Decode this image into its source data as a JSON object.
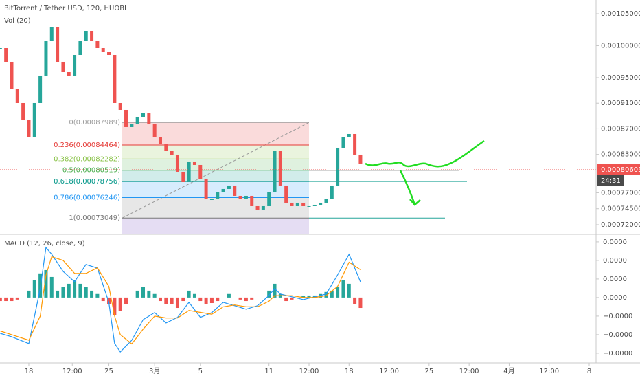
{
  "chart_data": [
    {
      "type": "candlestick",
      "title": "BitTorrent / Tether USD, 120, HUOBI",
      "subtitle": "Vol (20)",
      "x": [
        -2.5,
        -2,
        -1.5,
        -1,
        -0.5,
        0,
        0.5,
        1,
        1.5,
        2,
        2.5,
        3,
        3.5,
        4,
        4.5,
        5,
        5.5,
        6,
        6.5,
        7,
        7.5,
        8,
        8.5,
        9,
        9.5,
        10,
        10.5,
        11,
        11.5,
        12,
        12.5,
        13,
        13.5,
        14,
        14.5,
        15,
        15.5,
        16,
        16.5,
        17,
        17.5,
        18,
        18.5,
        19,
        19.5,
        20,
        20.5,
        21,
        21.5,
        22,
        22.5,
        23,
        23.5,
        24,
        24.5,
        25,
        25.5,
        26,
        26.5,
        27,
        27.5,
        28,
        28.5,
        29
      ],
      "close": [
        0.00099625,
        0.00097476,
        0.00093176,
        0.00091026,
        0.00088339,
        0.00085651,
        0.00091026,
        0.00095326,
        0.001007,
        0.0010285,
        0.00097476,
        0.00095863,
        0.00095326,
        0.0009855,
        0.001007,
        0.00102313,
        0.001007,
        0.00099625,
        0.00099088,
        0.0009855,
        0.00091026,
        0.00089951,
        0.00087264,
        0.00087801,
        0.00088876,
        0.00089414,
        0.00087801,
        0.00085651,
        0.00084577,
        0.00083502,
        0.00082964,
        0.00080277,
        0.00078664,
        0.00081889,
        0.00081352,
        0.00079202,
        0.00075977,
        0.00075977,
        0.00077052,
        0.0007759,
        0.00078127,
        0.00076515,
        0.00075977,
        0.00076515,
        0.00074902,
        0.00074365,
        0.00074902,
        0.00077052,
        0.00083502,
        0.00078127,
        0.0007544,
        0.00074902,
        0.0007544,
        0.00074902,
        0.00074902,
        0.00075117,
        0.0007544,
        0.00075977,
        0.00078127,
        0.00084039,
        0.00085651,
        0.00086189,
        0.00082964,
        0.00081567
      ],
      "up_color": "#26a69a",
      "down_color": "#ef5350",
      "xlim": [
        -2.52,
        49.6
      ],
      "xticks": [
        {
          "value": 0,
          "label": "18"
        },
        {
          "value": 3.8,
          "label": "12:00"
        },
        {
          "value": 7,
          "label": "25"
        },
        {
          "value": 11,
          "label": "3月"
        },
        {
          "value": 15,
          "label": "5"
        },
        {
          "value": 21,
          "label": "11"
        },
        {
          "value": 24.5,
          "label": "12:00"
        },
        {
          "value": 28,
          "label": "18"
        },
        {
          "value": 31.5,
          "label": "12:00"
        },
        {
          "value": 35,
          "label": "25"
        },
        {
          "value": 38.5,
          "label": "12:00"
        },
        {
          "value": 42,
          "label": "4月"
        },
        {
          "value": 45.5,
          "label": "12:00"
        },
        {
          "value": 49,
          "label": "8"
        }
      ],
      "ylim": [
        0.000706,
        0.0010715
      ],
      "yticks": [
        {
          "value": 0.00105,
          "label": "0.00105000"
        },
        {
          "value": 0.001,
          "label": "0.00100000"
        },
        {
          "value": 0.00095,
          "label": "0.00095000"
        },
        {
          "value": 0.00091,
          "label": "0.00091000"
        },
        {
          "value": 0.00087,
          "label": "0.00087000"
        },
        {
          "value": 0.00083,
          "label": "0.00083000"
        },
        {
          "value": 0.00077,
          "label": "0.00077000"
        },
        {
          "value": 0.000745,
          "label": "0.00074500"
        },
        {
          "value": 0.00072,
          "label": "0.00072000"
        }
      ],
      "last_price": {
        "value": 0.00080603,
        "label": "0.00080603"
      },
      "countdown": "24:31",
      "fib_levels": [
        {
          "label": "0(0.00087989)",
          "value": 0.00087989,
          "color": "#9e9e9e"
        },
        {
          "label": "0.236(0.00084464)",
          "value": 0.00084464,
          "color": "#e53935"
        },
        {
          "label": "0.382(0.00082282)",
          "value": 0.00082282,
          "color": "#8bc34a"
        },
        {
          "label": "0.5(0.00080519)",
          "value": 0.00080519,
          "color": "#4caf50"
        },
        {
          "label": "0.618(0.00078756)",
          "value": 0.00078756,
          "color": "#009688"
        },
        {
          "label": "0.786(0.00076246)",
          "value": 0.00076246,
          "color": "#2196f3"
        },
        {
          "label": "1(0.00073049)",
          "value": 0.00073049,
          "color": "#787878"
        }
      ]
    },
    {
      "type": "macd",
      "title": "MACD (12, 26, close, 9)",
      "histogram": [
        -1.9e-06,
        -1.9e-06,
        -1.9e-06,
        -1.1e-06,
        0,
        3.7e-06,
        9.3e-06,
        1.3e-05,
        1.48e-05,
        1.11e-05,
        3.7e-06,
        5.6e-06,
        7.4e-06,
        9.3e-06,
        7.4e-06,
        5.6e-06,
        3.7e-06,
        1.9e-06,
        -1.9e-06,
        -3.7e-06,
        -9.3e-06,
        -7.4e-06,
        -3.7e-06,
        0,
        3.7e-06,
        5.6e-06,
        3.7e-06,
        1.9e-06,
        -1.9e-06,
        -3.7e-06,
        -3.7e-06,
        -5.6e-06,
        -1.9e-06,
        3.7e-06,
        1.9e-06,
        -1.9e-06,
        -3.7e-06,
        -3e-06,
        -1.9e-06,
        0,
        1.9e-06,
        0,
        -1.1e-06,
        -1.9e-06,
        -1.1e-06,
        0,
        0,
        3.7e-06,
        7.4e-06,
        1.9e-06,
        -1.9e-06,
        -1.1e-06,
        0,
        7e-07,
        1.1e-06,
        1.1e-06,
        1.9e-06,
        3e-06,
        3.7e-06,
        5.6e-06,
        9.3e-06,
        7.4e-06,
        -3.7e-06,
        -5.6e-06
      ],
      "line_x": [
        -2.5,
        -1.5,
        0,
        1,
        1.5,
        2,
        3,
        4,
        5,
        6,
        7,
        7.5,
        8,
        9,
        10,
        11,
        12,
        13,
        14,
        15,
        16,
        17,
        18,
        19,
        20,
        21,
        21.5,
        22,
        23,
        24,
        25,
        26,
        27,
        28,
        29
      ],
      "series": [
        {
          "name": "MACD",
          "color": "#2196f3",
          "values": [
            -1.93e-05,
            -2.11e-05,
            -2.48e-05,
            4.8e-06,
            2.7e-05,
            2.33e-05,
            1.41e-05,
            8.5e-06,
            1.78e-05,
            1.59e-05,
            -2.6e-06,
            -2.48e-05,
            -2.93e-05,
            -2.3e-05,
            -1.19e-05,
            -8.1e-06,
            -1.37e-05,
            -1.07e-05,
            -2.6e-06,
            -1.07e-05,
            -8.1e-06,
            -2.6e-06,
            -4.4e-06,
            -6.3e-06,
            -4.4e-06,
            1.1e-06,
            4.8e-06,
            1.9e-06,
            4e-07,
            -1.1e-06,
            4e-07,
            1.9e-06,
            1.22e-05,
            2.33e-05,
            8.5e-06
          ]
        },
        {
          "name": "Signal",
          "color": "#ff9800",
          "values": [
            -1.8e-05,
            -2e-05,
            -2.3e-05,
            -1e-05,
            1.2e-05,
            2.2e-05,
            2e-05,
            1.3e-05,
            1.3e-05,
            1.6e-05,
            6e-06,
            -1e-05,
            -2e-05,
            -2.5e-05,
            -1.7e-05,
            -1e-05,
            -1.1e-05,
            -1.1e-05,
            -7e-06,
            -8e-06,
            -9e-06,
            -5e-06,
            -4e-06,
            -5e-06,
            -5e-06,
            -2e-06,
            1e-06,
            1e-06,
            1e-06,
            0,
            0,
            1e-06,
            6e-06,
            1.9e-05,
            1.5e-05
          ]
        }
      ],
      "ylim": [
        -3.3e-05,
        3.33e-05
      ],
      "yticks": [
        {
          "value": 3e-05,
          "label": "0.0000"
        },
        {
          "value": 2e-05,
          "label": "0.0000"
        },
        {
          "value": 1e-05,
          "label": "0.0000"
        },
        {
          "value": 0,
          "label": "0.0000"
        },
        {
          "value": -1e-05,
          "label": "−0.0000"
        },
        {
          "value": -2e-05,
          "label": "−0.0000"
        },
        {
          "value": -3e-05,
          "label": "−0.0000"
        }
      ]
    }
  ]
}
